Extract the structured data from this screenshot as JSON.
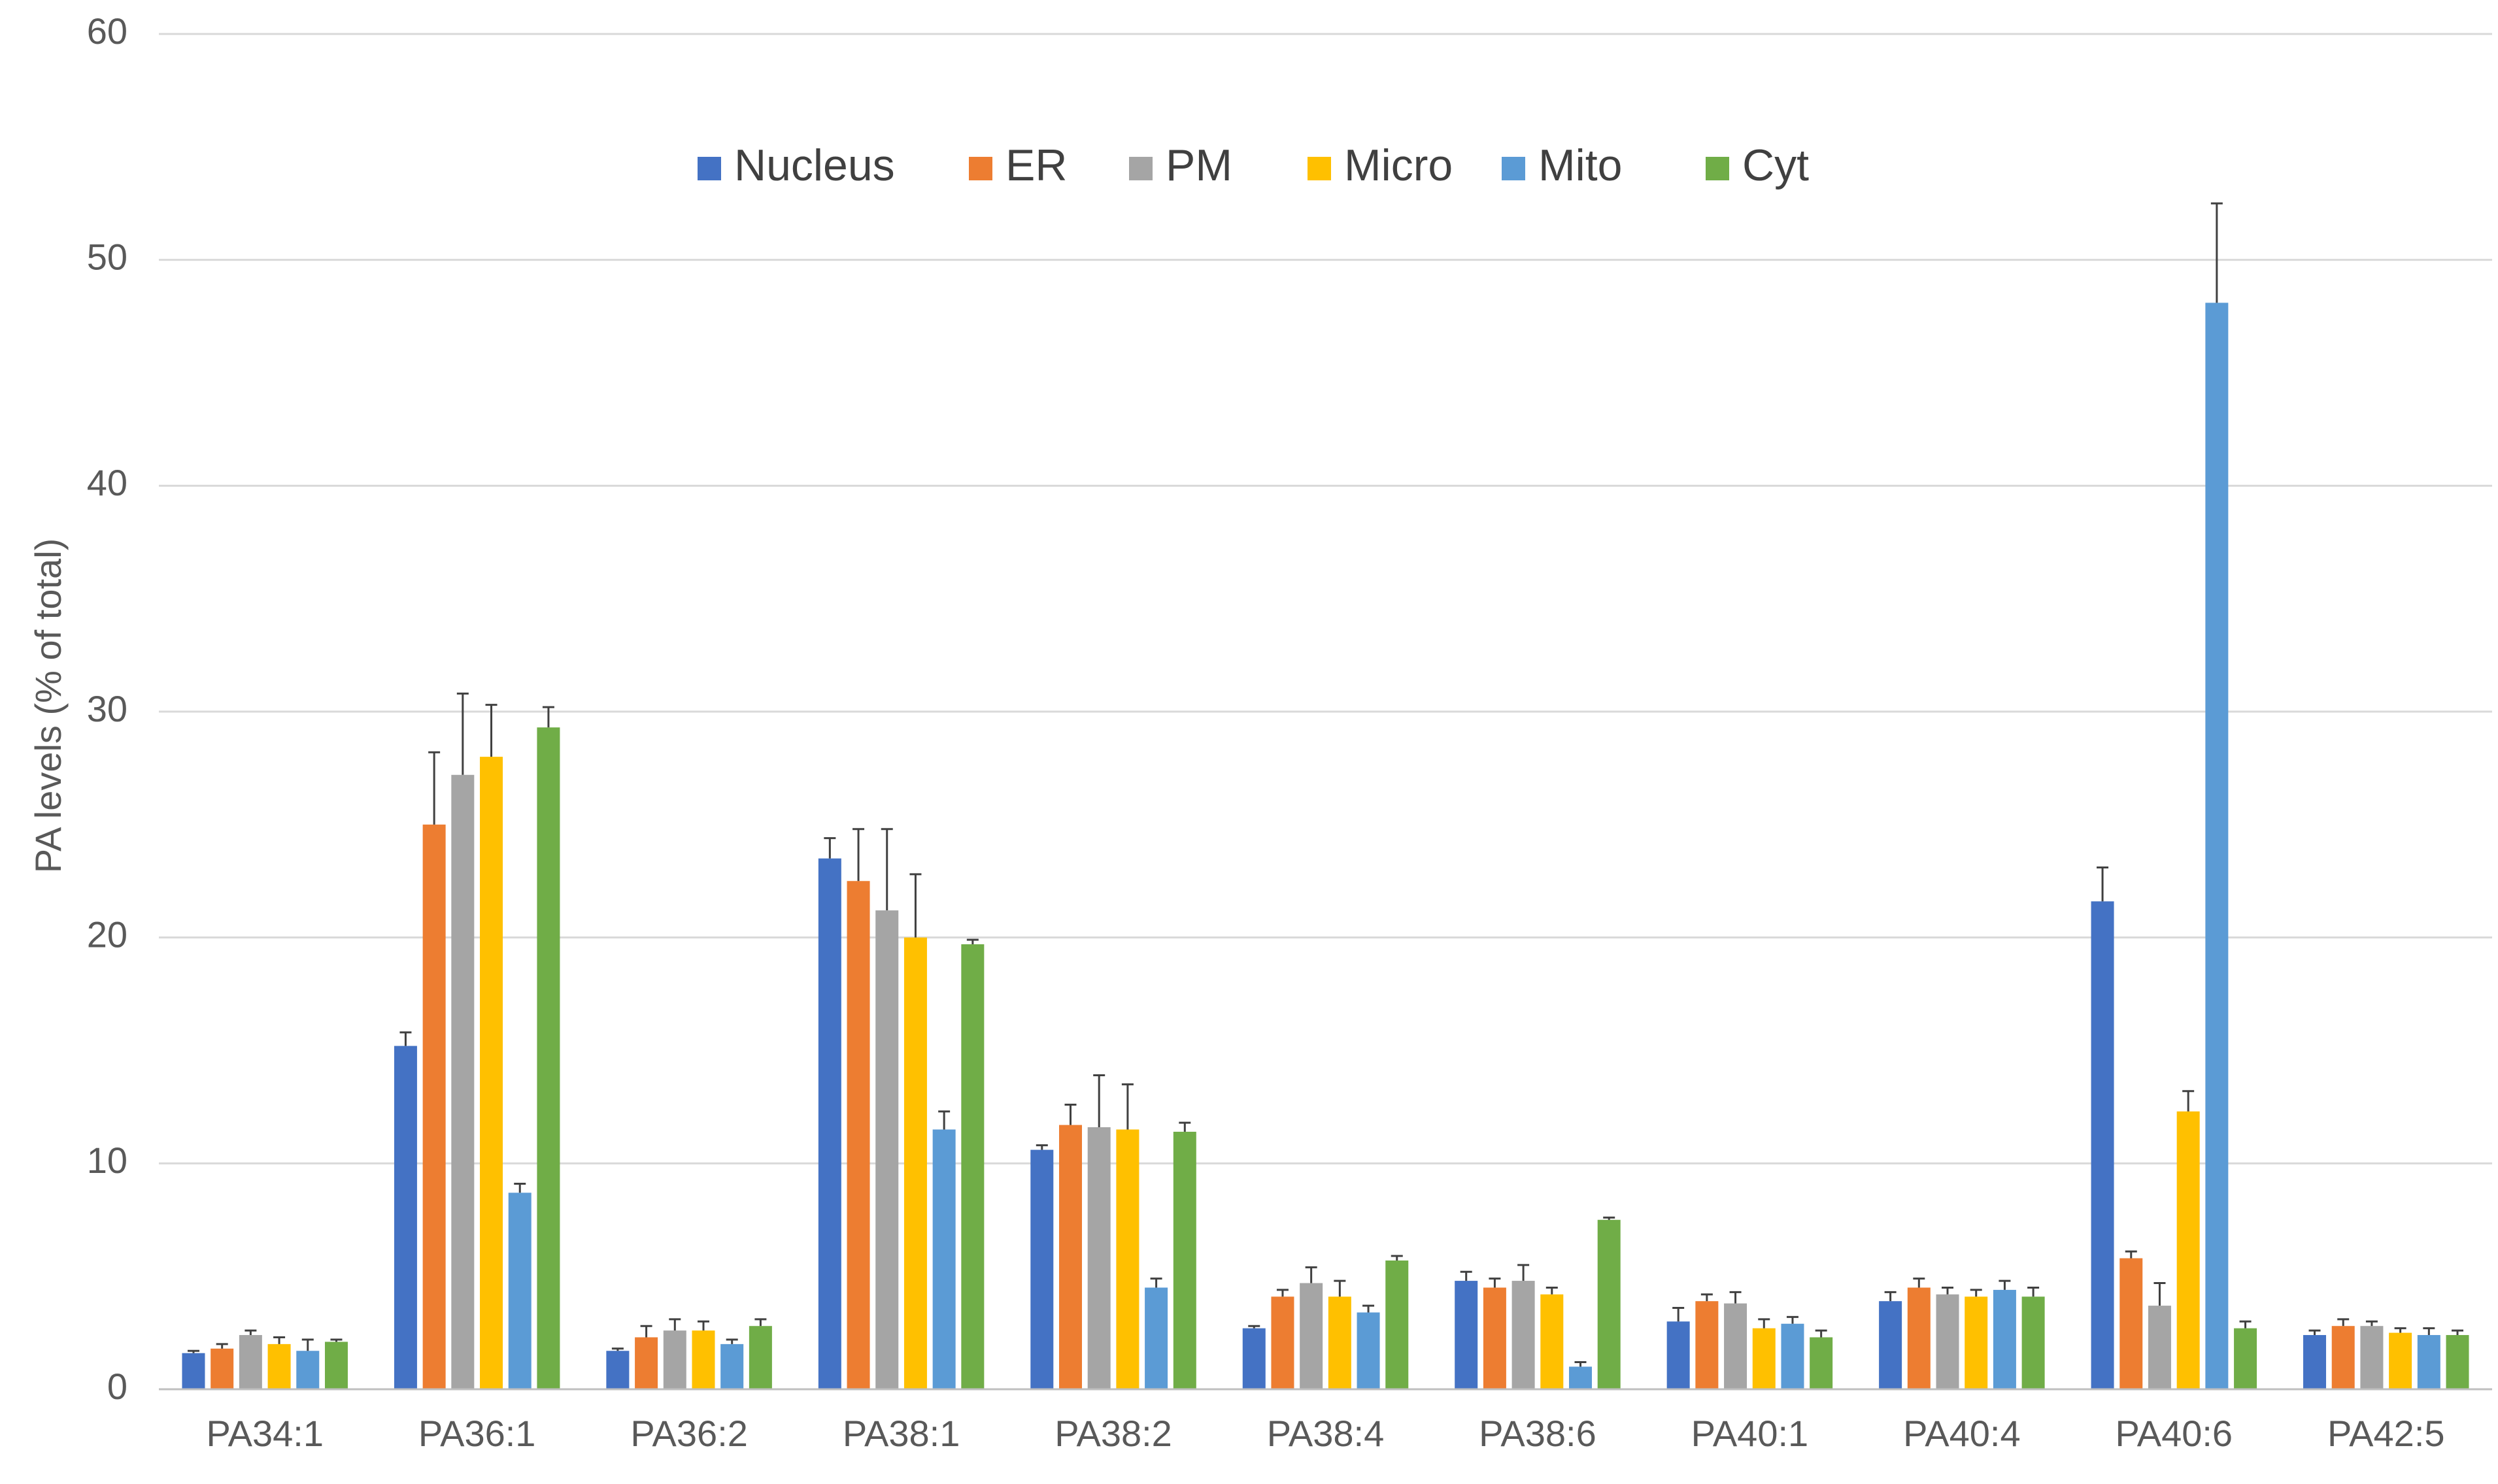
{
  "chart_data": {
    "type": "bar",
    "title": "",
    "xlabel": "",
    "ylabel": "PA levels (% of total)",
    "ylim": [
      0,
      60
    ],
    "yticks": [
      0,
      10,
      20,
      30,
      40,
      50,
      60
    ],
    "grid": "horizontal",
    "legend_position": "top",
    "categories": [
      "PA34:1",
      "PA36:1",
      "PA36:2",
      "PA38:1",
      "PA38:2",
      "PA38:4",
      "PA38:6",
      "PA40:1",
      "PA40:4",
      "PA40:6",
      "PA42:5"
    ],
    "series": [
      {
        "name": "Nucleus",
        "color": "#4472C4",
        "values": [
          1.6,
          15.2,
          1.7,
          23.5,
          10.6,
          2.7,
          4.8,
          3.0,
          3.9,
          21.6,
          2.4
        ],
        "errors": [
          0.1,
          0.6,
          0.1,
          0.9,
          0.2,
          0.1,
          0.4,
          0.6,
          0.4,
          1.5,
          0.2
        ]
      },
      {
        "name": "ER",
        "color": "#ED7D31",
        "values": [
          1.8,
          25.0,
          2.3,
          22.5,
          11.7,
          4.1,
          4.5,
          3.9,
          4.5,
          5.8,
          2.8
        ],
        "errors": [
          0.2,
          3.2,
          0.5,
          2.3,
          0.9,
          0.3,
          0.4,
          0.3,
          0.4,
          0.3,
          0.3
        ]
      },
      {
        "name": "PM",
        "color": "#A5A5A5",
        "values": [
          2.4,
          27.2,
          2.6,
          21.2,
          11.6,
          4.7,
          4.8,
          3.8,
          4.2,
          3.7,
          2.8
        ],
        "errors": [
          0.2,
          3.6,
          0.5,
          3.6,
          2.3,
          0.7,
          0.7,
          0.5,
          0.3,
          1.0,
          0.2
        ]
      },
      {
        "name": "Micro",
        "color": "#FFC000",
        "values": [
          2.0,
          28.0,
          2.6,
          20.0,
          11.5,
          4.1,
          4.2,
          2.7,
          4.1,
          12.3,
          2.5
        ],
        "errors": [
          0.3,
          2.3,
          0.4,
          2.8,
          2.0,
          0.7,
          0.3,
          0.4,
          0.3,
          0.9,
          0.2
        ]
      },
      {
        "name": "Mito",
        "color": "#5B9BD5",
        "values": [
          1.7,
          8.7,
          2.0,
          11.5,
          4.5,
          3.4,
          1.0,
          2.9,
          4.4,
          48.1,
          2.4
        ],
        "errors": [
          0.5,
          0.4,
          0.2,
          0.8,
          0.4,
          0.3,
          0.2,
          0.3,
          0.4,
          4.4,
          0.3
        ]
      },
      {
        "name": "Cyt",
        "color": "#70AD47",
        "values": [
          2.1,
          29.3,
          2.8,
          19.7,
          11.4,
          5.7,
          7.5,
          2.3,
          4.1,
          2.7,
          2.4
        ],
        "errors": [
          0.1,
          0.9,
          0.3,
          0.2,
          0.4,
          0.2,
          0.1,
          0.3,
          0.4,
          0.3,
          0.2
        ]
      }
    ]
  }
}
